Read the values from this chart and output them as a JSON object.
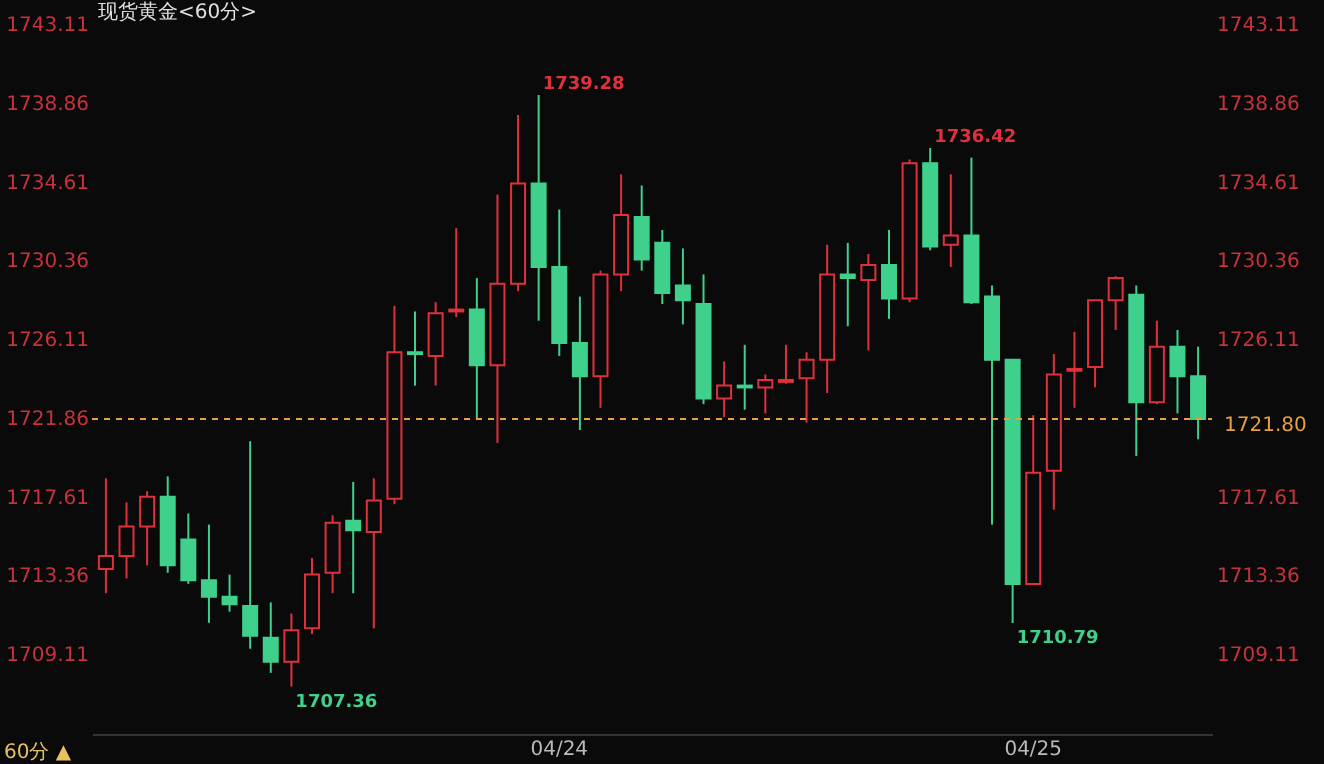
{
  "chart_data": {
    "type": "candlestick",
    "title": "现货黄金<60分>",
    "categories": [
      null,
      null,
      null,
      null,
      null,
      null,
      null,
      null,
      null,
      null,
      null,
      null,
      null,
      null,
      null,
      null,
      null,
      null,
      null,
      null,
      null,
      null,
      "04/24",
      null,
      null,
      null,
      null,
      null,
      null,
      null,
      null,
      null,
      null,
      null,
      null,
      null,
      null,
      null,
      null,
      null,
      null,
      null,
      null,
      null,
      null,
      "04/25",
      null,
      null,
      null,
      null,
      null,
      null,
      null,
      null
    ],
    "ohlc": [
      [
        1713.7,
        1718.6,
        1712.4,
        1714.4
      ],
      [
        1714.4,
        1717.3,
        1713.2,
        1716.0
      ],
      [
        1716.0,
        1717.9,
        1713.9,
        1717.6
      ],
      [
        1717.6,
        1718.7,
        1713.5,
        1713.9
      ],
      [
        1715.3,
        1716.7,
        1712.9,
        1713.1
      ],
      [
        1713.1,
        1716.1,
        1710.8,
        1712.2
      ],
      [
        1712.2,
        1713.4,
        1711.4,
        1711.8
      ],
      [
        1711.7,
        1720.6,
        1709.4,
        1710.1
      ],
      [
        1710.0,
        1711.9,
        1708.1,
        1708.7
      ],
      [
        1708.7,
        1711.3,
        1707.36,
        1710.4
      ],
      [
        1710.5,
        1714.3,
        1710.2,
        1713.4
      ],
      [
        1713.5,
        1716.6,
        1712.4,
        1716.2
      ],
      [
        1716.3,
        1718.4,
        1712.4,
        1715.8
      ],
      [
        1715.7,
        1718.6,
        1710.5,
        1717.4
      ],
      [
        1717.5,
        1727.9,
        1717.2,
        1725.4
      ],
      [
        1725.4,
        1727.6,
        1723.6,
        1725.3
      ],
      [
        1725.2,
        1728.1,
        1723.6,
        1727.5
      ],
      [
        1727.6,
        1732.1,
        1727.3,
        1727.7
      ],
      [
        1727.7,
        1729.4,
        1721.8,
        1724.7
      ],
      [
        1724.7,
        1733.9,
        1720.5,
        1729.1
      ],
      [
        1729.1,
        1738.2,
        1728.7,
        1734.5
      ],
      [
        1734.5,
        1739.28,
        1727.1,
        1730.0
      ],
      [
        1730.0,
        1733.1,
        1725.2,
        1725.9
      ],
      [
        1725.9,
        1728.4,
        1721.2,
        1724.1
      ],
      [
        1724.1,
        1729.8,
        1722.4,
        1729.6
      ],
      [
        1729.6,
        1735.0,
        1728.7,
        1732.8
      ],
      [
        1732.7,
        1734.4,
        1729.8,
        1730.4
      ],
      [
        1731.3,
        1732.0,
        1728.0,
        1728.6
      ],
      [
        1729.0,
        1731.0,
        1726.9,
        1728.2
      ],
      [
        1728.0,
        1729.6,
        1722.6,
        1722.9
      ],
      [
        1722.9,
        1724.9,
        1721.9,
        1723.6
      ],
      [
        1723.6,
        1725.8,
        1722.3,
        1723.5
      ],
      [
        1723.5,
        1724.2,
        1722.1,
        1723.9
      ],
      [
        1723.8,
        1725.8,
        1723.7,
        1723.9
      ],
      [
        1724.0,
        1725.4,
        1721.6,
        1725.0
      ],
      [
        1725.0,
        1731.2,
        1723.2,
        1729.6
      ],
      [
        1729.6,
        1731.3,
        1726.8,
        1729.4
      ],
      [
        1729.3,
        1730.7,
        1725.5,
        1730.1
      ],
      [
        1730.1,
        1732.0,
        1727.2,
        1728.3
      ],
      [
        1728.3,
        1735.8,
        1728.1,
        1735.6
      ],
      [
        1735.6,
        1736.42,
        1730.9,
        1731.1
      ],
      [
        1731.2,
        1735.0,
        1730.0,
        1731.7
      ],
      [
        1731.7,
        1735.9,
        1728.0,
        1728.1
      ],
      [
        1728.4,
        1729.0,
        1716.1,
        1725.0
      ],
      [
        1725.0,
        1725.0,
        1710.79,
        1712.9
      ],
      [
        1712.9,
        1722.0,
        1712.9,
        1718.9
      ],
      [
        1719.0,
        1725.3,
        1716.9,
        1724.2
      ],
      [
        1724.4,
        1726.5,
        1722.4,
        1724.5
      ],
      [
        1724.6,
        1728.2,
        1723.5,
        1728.2
      ],
      [
        1728.2,
        1729.5,
        1726.6,
        1729.4
      ],
      [
        1728.5,
        1729.0,
        1719.8,
        1722.7
      ],
      [
        1722.7,
        1727.1,
        1722.6,
        1725.7
      ],
      [
        1725.7,
        1726.6,
        1722.1,
        1724.1
      ],
      [
        1724.1,
        1725.7,
        1720.7,
        1721.8
      ]
    ],
    "colors": [
      "#e0303c",
      "#e0303c",
      "#e0303c",
      "#3fd08c",
      "#3fd08c",
      "#3fd08c",
      "#3fd08c",
      "#3fd08c",
      "#3fd08c",
      "#e0303c",
      "#e0303c",
      "#e0303c",
      "#3fd08c",
      "#e0303c",
      "#e0303c",
      "#3fd08c",
      "#e0303c",
      "#e0303c",
      "#3fd08c",
      "#e0303c",
      "#e0303c",
      "#3fd08c",
      "#3fd08c",
      "#3fd08c",
      "#e0303c",
      "#e0303c",
      "#3fd08c",
      "#3fd08c",
      "#3fd08c",
      "#3fd08c",
      "#e0303c",
      "#3fd08c",
      "#e0303c",
      "#e0303c",
      "#e0303c",
      "#e0303c",
      "#3fd08c",
      "#e0303c",
      "#3fd08c",
      "#e0303c",
      "#3fd08c",
      "#e0303c",
      "#3fd08c",
      "#3fd08c",
      "#3fd08c",
      "#e0303c",
      "#e0303c",
      "#e0303c",
      "#e0303c",
      "#e0303c",
      "#3fd08c",
      "#e0303c",
      "#3fd08c",
      "#3fd08c"
    ],
    "ylim": [
      1704.8,
      1743.11
    ],
    "yticks": [
      1709.11,
      1713.36,
      1717.61,
      1721.86,
      1726.11,
      1730.36,
      1734.61,
      1738.86,
      1743.11
    ],
    "y2lim": [
      1704.8,
      1743.11
    ],
    "y2ticks": [
      1709.11,
      1713.36,
      1717.61,
      1726.11,
      1730.36,
      1734.61,
      1738.86,
      1743.11
    ],
    "ref_lines": [
      {
        "axis": "y",
        "value": 1721.8,
        "label": "1721.80",
        "color": "#e8a040",
        "line_style": "dashed"
      }
    ],
    "annotations": [
      "1739.28",
      "1707.36",
      "1736.42",
      "1710.79",
      "60分 ▲"
    ],
    "grid": false
  }
}
